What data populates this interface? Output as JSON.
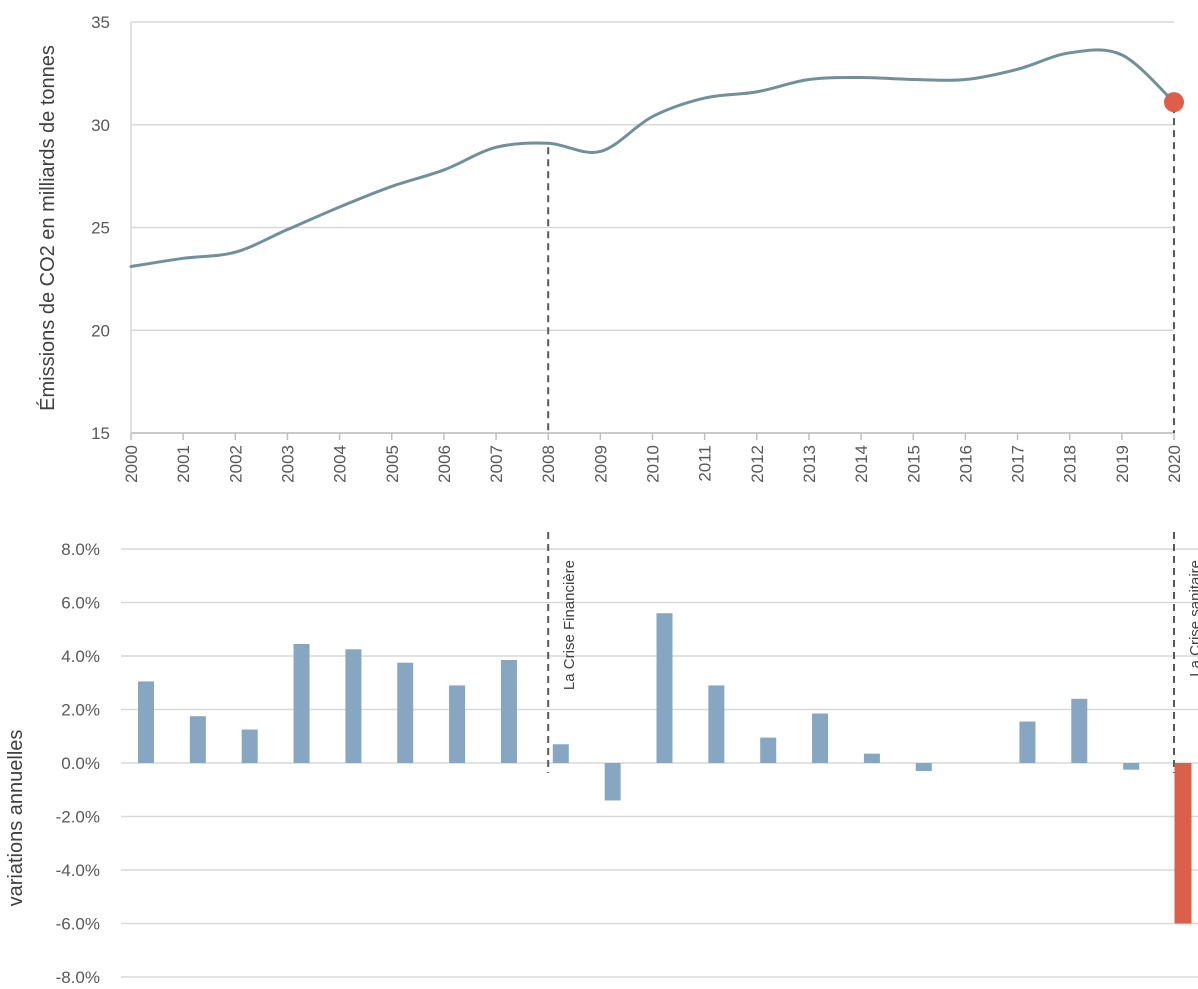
{
  "chart_data": [
    {
      "type": "line",
      "title": "",
      "xlabel": "",
      "ylabel": "Émissions de CO2 en milliards de tonnes",
      "ylim": [
        15,
        35
      ],
      "yticks": [
        "15",
        "20",
        "25",
        "30",
        "35"
      ],
      "x": [
        "2000",
        "2001",
        "2002",
        "2003",
        "2004",
        "2005",
        "2006",
        "2007",
        "2008",
        "2009",
        "2010",
        "2011",
        "2012",
        "2013",
        "2014",
        "2015",
        "2016",
        "2017",
        "2018",
        "2019",
        "2020"
      ],
      "series": [
        {
          "values": [
            23.1,
            23.5,
            23.8,
            24.9,
            26.0,
            27.0,
            27.8,
            28.9,
            29.1,
            28.7,
            30.4,
            31.3,
            31.6,
            32.2,
            32.3,
            32.2,
            32.2,
            32.7,
            33.5,
            33.4,
            31.1
          ]
        }
      ],
      "highlight": {
        "x": "2020",
        "value": 31.1,
        "color": "#dc5f49"
      },
      "line_color": "#71909a",
      "grid": "horizontal",
      "reference_lines_at": [
        "2008",
        "2020"
      ]
    },
    {
      "type": "bar",
      "title": "",
      "xlabel": "",
      "ylabel": "variations annuelles",
      "ylim": [
        -8,
        8
      ],
      "yticks": [
        "8.0%",
        "6.0%",
        "4.0%",
        "2.0%",
        "0.0%",
        "-2.0%",
        "-4.0%",
        "-6.0%",
        "-8.0%"
      ],
      "categories": [
        "2000",
        "2001",
        "2002",
        "2003",
        "2004",
        "2005",
        "2006",
        "2007",
        "2008",
        "2009",
        "2010",
        "2011",
        "2012",
        "2013",
        "2014",
        "2015",
        "2016",
        "2017",
        "2018",
        "2019",
        "2020"
      ],
      "series": [
        {
          "values": [
            3.05,
            1.75,
            1.25,
            4.45,
            4.25,
            3.75,
            2.9,
            3.85,
            0.7,
            -1.4,
            5.6,
            2.9,
            0.95,
            1.85,
            0.35,
            -0.3,
            0.0,
            1.55,
            2.4,
            -0.25,
            -6.0
          ]
        }
      ],
      "bar_color": "#86a6c1",
      "highlight": {
        "category": "2020",
        "color": "#dc5f49"
      },
      "grid": "horizontal",
      "annotations": [
        {
          "x": "2008",
          "text": "La Crise Financière"
        },
        {
          "x": "2020",
          "text": "La Crise sanitaire"
        }
      ]
    }
  ]
}
